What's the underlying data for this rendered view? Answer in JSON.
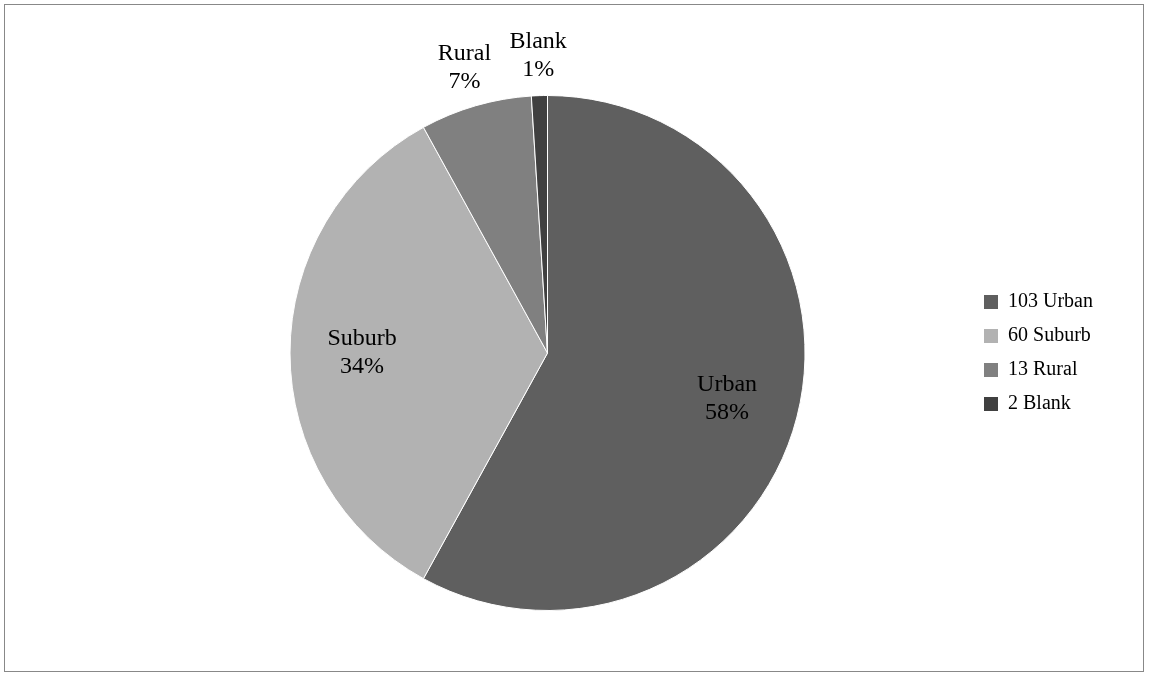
{
  "chart_data": {
    "type": "pie",
    "categories": [
      "103 Urban",
      "60 Suburb",
      "13 Rural",
      "2 Blank"
    ],
    "values": [
      58,
      34,
      7,
      1
    ],
    "colors": [
      "#5f5f5f",
      "#b2b2b2",
      "#808080",
      "#404040"
    ],
    "value_labels": [
      "Urban 58%",
      "Suburb 34%",
      "Rural 7%",
      "Blank 1%"
    ],
    "legend": "right"
  }
}
